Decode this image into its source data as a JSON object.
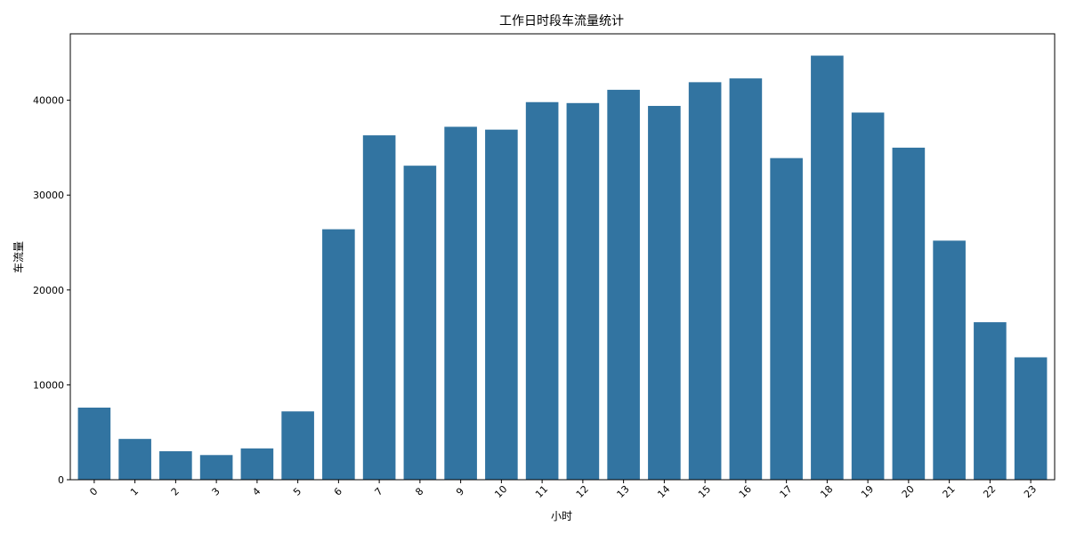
{
  "chart_data": {
    "type": "bar",
    "title": "工作日时段车流量统计",
    "xlabel": "小时",
    "ylabel": "车流量",
    "categories": [
      "0",
      "1",
      "2",
      "3",
      "4",
      "5",
      "6",
      "7",
      "8",
      "9",
      "10",
      "11",
      "12",
      "13",
      "14",
      "15",
      "16",
      "17",
      "18",
      "19",
      "20",
      "21",
      "22",
      "23"
    ],
    "values": [
      7600,
      4300,
      3000,
      2600,
      3300,
      7200,
      26400,
      36300,
      33100,
      37200,
      36900,
      39800,
      39700,
      41100,
      39400,
      41900,
      42300,
      33900,
      44700,
      38700,
      35000,
      25200,
      16600,
      12900
    ],
    "ylim": [
      0,
      47000
    ],
    "yticks": [
      0,
      10000,
      20000,
      30000,
      40000
    ],
    "bar_color": "#3274a1",
    "grid": false,
    "xtick_rotation": -45
  }
}
